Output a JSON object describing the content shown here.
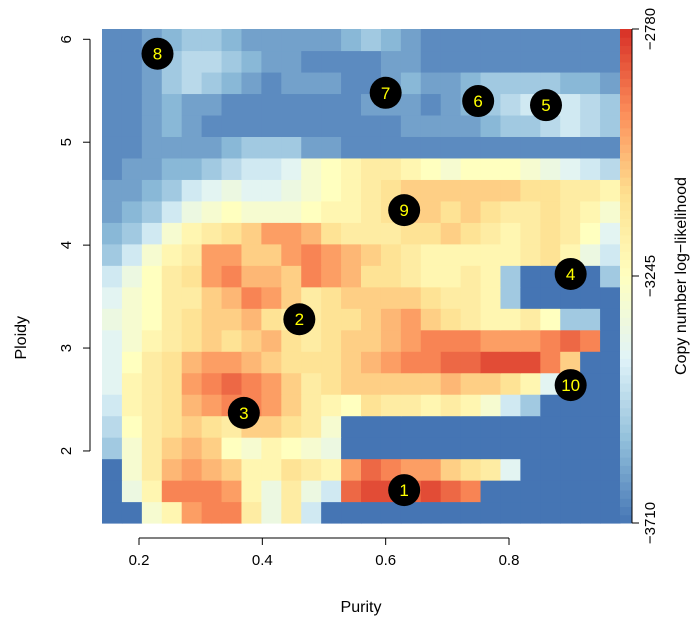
{
  "chart_data": {
    "type": "heatmap",
    "title": "",
    "xlabel": "Purity",
    "ylabel": "Ploidy",
    "xlim": [
      0.14,
      0.98
    ],
    "ylim": [
      1.3,
      6.1
    ],
    "x_ticks": [
      0.2,
      0.4,
      0.6,
      0.8
    ],
    "x_tick_labels": [
      "0.2",
      "0.4",
      "0.6",
      "0.8"
    ],
    "y_ticks": [
      2,
      3,
      4,
      5,
      6
    ],
    "y_tick_labels": [
      "2",
      "3",
      "4",
      "5",
      "6"
    ],
    "grid": false,
    "colorbar": {
      "label": "Copy number log−likelihood",
      "min": -3710,
      "max": -2780,
      "ticks": [
        -2780,
        -3245,
        -3710
      ],
      "tick_labels": [
        "−2780",
        "−3245",
        "−3710"
      ],
      "colors": [
        "#4575b4",
        "#91bfdb",
        "#e0f3f8",
        "#ffffbf",
        "#fee090",
        "#fc8d59",
        "#d73027"
      ]
    },
    "grid_x_edges": [
      0.14,
      0.98
    ],
    "grid_y_edges": [
      1.3,
      6.1
    ],
    "grid_cols": 26,
    "grid_rows": 23,
    "values_normalized": [
      [
        0.0,
        0.0,
        0.45,
        0.55,
        0.8,
        0.85,
        0.85,
        0.6,
        0.4,
        0.6,
        0.3,
        0.0,
        0.0,
        0.0,
        0.0,
        0.0,
        0.0,
        0.0,
        0.0,
        0.0,
        0.0,
        0.0,
        0.0,
        0.0,
        0.0,
        0.0
      ],
      [
        0.0,
        0.4,
        0.55,
        0.85,
        0.85,
        0.85,
        0.8,
        0.55,
        0.4,
        0.6,
        0.4,
        0.3,
        0.9,
        0.95,
        0.95,
        0.9,
        0.95,
        0.9,
        0.85,
        0.0,
        0.0,
        0.0,
        0.0,
        0.0,
        0.0,
        0.0
      ],
      [
        0.0,
        0.45,
        0.6,
        0.75,
        0.8,
        0.75,
        0.7,
        0.55,
        0.55,
        0.65,
        0.6,
        0.55,
        0.8,
        0.9,
        0.85,
        0.8,
        0.8,
        0.7,
        0.65,
        0.6,
        0.35,
        0.0,
        0.0,
        0.0,
        0.0,
        0.0
      ],
      [
        0.2,
        0.45,
        0.6,
        0.7,
        0.75,
        0.7,
        0.5,
        0.45,
        0.55,
        0.5,
        0.45,
        0.4,
        0.0,
        0.0,
        0.0,
        0.0,
        0.0,
        0.0,
        0.0,
        0.0,
        0.0,
        0.0,
        0.0,
        0.0,
        0.0,
        0.0
      ],
      [
        0.25,
        0.5,
        0.6,
        0.65,
        0.7,
        0.65,
        0.6,
        0.7,
        0.7,
        0.65,
        0.6,
        0.45,
        0.0,
        0.0,
        0.0,
        0.0,
        0.0,
        0.0,
        0.0,
        0.0,
        0.0,
        0.0,
        0.0,
        0.0,
        0.0,
        0.0
      ],
      [
        0.3,
        0.55,
        0.6,
        0.65,
        0.75,
        0.8,
        0.85,
        0.85,
        0.8,
        0.7,
        0.6,
        0.55,
        0.5,
        0.65,
        0.6,
        0.6,
        0.55,
        0.6,
        0.55,
        0.45,
        0.3,
        0.2,
        0.0,
        0.0,
        0.0,
        0.0
      ],
      [
        0.35,
        0.55,
        0.6,
        0.65,
        0.8,
        0.85,
        0.9,
        0.85,
        0.8,
        0.7,
        0.6,
        0.65,
        0.7,
        0.7,
        0.7,
        0.7,
        0.7,
        0.75,
        0.7,
        0.7,
        0.65,
        0.55,
        0.35,
        0.0,
        0.0,
        0.0
      ],
      [
        0.35,
        0.5,
        0.6,
        0.65,
        0.75,
        0.8,
        0.8,
        0.75,
        0.7,
        0.65,
        0.65,
        0.65,
        0.7,
        0.75,
        0.8,
        0.85,
        0.85,
        0.9,
        0.9,
        0.95,
        0.95,
        0.95,
        0.85,
        0.7,
        0.0,
        0.0
      ],
      [
        0.35,
        0.45,
        0.55,
        0.6,
        0.65,
        0.7,
        0.65,
        0.7,
        0.75,
        0.65,
        0.6,
        0.65,
        0.7,
        0.7,
        0.75,
        0.8,
        0.85,
        0.85,
        0.85,
        0.8,
        0.8,
        0.8,
        0.85,
        0.9,
        0.85,
        0.0
      ],
      [
        0.4,
        0.45,
        0.5,
        0.6,
        0.65,
        0.7,
        0.7,
        0.75,
        0.65,
        0.6,
        0.6,
        0.65,
        0.65,
        0.7,
        0.75,
        0.8,
        0.7,
        0.65,
        0.6,
        0.55,
        0.55,
        0.6,
        0.5,
        0.2,
        0.2,
        0.0
      ],
      [
        0.35,
        0.45,
        0.5,
        0.6,
        0.6,
        0.7,
        0.75,
        0.85,
        0.8,
        0.7,
        0.6,
        0.65,
        0.7,
        0.7,
        0.7,
        0.7,
        0.65,
        0.6,
        0.6,
        0.55,
        0.2,
        0.0,
        0.0,
        0.0,
        0.0,
        0.0
      ],
      [
        0.3,
        0.4,
        0.5,
        0.6,
        0.65,
        0.8,
        0.85,
        0.75,
        0.75,
        0.7,
        0.85,
        0.8,
        0.75,
        0.65,
        0.65,
        0.6,
        0.55,
        0.55,
        0.6,
        0.55,
        0.2,
        0.0,
        0.0,
        0.0,
        0.0,
        0.2
      ],
      [
        0.2,
        0.3,
        0.45,
        0.55,
        0.6,
        0.8,
        0.8,
        0.7,
        0.7,
        0.8,
        0.85,
        0.8,
        0.75,
        0.7,
        0.65,
        0.6,
        0.55,
        0.55,
        0.55,
        0.55,
        0.55,
        0.6,
        0.65,
        0.55,
        0.4,
        0.3
      ],
      [
        0.15,
        0.2,
        0.3,
        0.45,
        0.55,
        0.6,
        0.65,
        0.7,
        0.8,
        0.8,
        0.75,
        0.65,
        0.6,
        0.6,
        0.6,
        0.65,
        0.65,
        0.7,
        0.65,
        0.6,
        0.55,
        0.6,
        0.65,
        0.6,
        0.5,
        0.35
      ],
      [
        0.1,
        0.15,
        0.2,
        0.3,
        0.4,
        0.45,
        0.5,
        0.45,
        0.45,
        0.45,
        0.5,
        0.55,
        0.55,
        0.6,
        0.65,
        0.7,
        0.7,
        0.65,
        0.7,
        0.65,
        0.6,
        0.6,
        0.65,
        0.6,
        0.55,
        0.45
      ],
      [
        0.1,
        0.1,
        0.15,
        0.2,
        0.3,
        0.35,
        0.4,
        0.35,
        0.35,
        0.4,
        0.45,
        0.5,
        0.55,
        0.6,
        0.65,
        0.7,
        0.7,
        0.7,
        0.7,
        0.7,
        0.7,
        0.65,
        0.65,
        0.6,
        0.6,
        0.55
      ],
      [
        0.05,
        0.1,
        0.1,
        0.15,
        0.15,
        0.2,
        0.25,
        0.3,
        0.3,
        0.35,
        0.45,
        0.5,
        0.55,
        0.6,
        0.6,
        0.55,
        0.5,
        0.45,
        0.5,
        0.5,
        0.5,
        0.45,
        0.4,
        0.35,
        0.3,
        0.25
      ],
      [
        0.05,
        0.05,
        0.1,
        0.1,
        0.1,
        0.1,
        0.15,
        0.2,
        0.2,
        0.2,
        0.1,
        0.1,
        0.05,
        0.05,
        0.05,
        0.05,
        0.05,
        0.05,
        0.05,
        0.05,
        0.05,
        0.05,
        0.05,
        0.05,
        0.05,
        0.05
      ],
      [
        0.05,
        0.05,
        0.1,
        0.15,
        0.1,
        0.05,
        0.05,
        0.05,
        0.05,
        0.05,
        0.05,
        0.05,
        0.05,
        0.05,
        0.05,
        0.1,
        0.1,
        0.1,
        0.1,
        0.15,
        0.2,
        0.2,
        0.25,
        0.3,
        0.25,
        0.2
      ],
      [
        0.05,
        0.05,
        0.1,
        0.15,
        0.1,
        0.1,
        0.05,
        0.05,
        0.05,
        0.05,
        0.05,
        0.05,
        0.05,
        0.1,
        0.1,
        0.1,
        0.05,
        0.1,
        0.15,
        0.2,
        0.25,
        0.3,
        0.35,
        0.3,
        0.25,
        0.2
      ],
      [
        0.05,
        0.05,
        0.1,
        0.2,
        0.25,
        0.2,
        0.15,
        0.1,
        0.05,
        0.1,
        0.1,
        0.1,
        0.05,
        0.05,
        0.1,
        0.15,
        0.1,
        0.1,
        0.15,
        0.2,
        0.2,
        0.2,
        0.2,
        0.15,
        0.15,
        0.1
      ],
      [
        0.05,
        0.05,
        0.1,
        0.2,
        0.25,
        0.25,
        0.2,
        0.15,
        0.1,
        0.1,
        0.05,
        0.05,
        0.05,
        0.05,
        0.1,
        0.1,
        0.05,
        0.05,
        0.05,
        0.05,
        0.05,
        0.05,
        0.05,
        0.05,
        0.05,
        0.05
      ],
      [
        0.05,
        0.05,
        0.1,
        0.15,
        0.2,
        0.2,
        0.15,
        0.1,
        0.1,
        0.1,
        0.1,
        0.1,
        0.15,
        0.2,
        0.15,
        0.1,
        0.05,
        0.05,
        0.05,
        0.05,
        0.05,
        0.05,
        0.05,
        0.05,
        0.05,
        0.05
      ]
    ],
    "markers": [
      {
        "label": "1",
        "x": 0.63,
        "y": 1.62
      },
      {
        "label": "2",
        "x": 0.46,
        "y": 3.28
      },
      {
        "label": "3",
        "x": 0.37,
        "y": 2.37
      },
      {
        "label": "4",
        "x": 0.9,
        "y": 3.72
      },
      {
        "label": "5",
        "x": 0.86,
        "y": 5.36
      },
      {
        "label": "6",
        "x": 0.75,
        "y": 5.4
      },
      {
        "label": "7",
        "x": 0.6,
        "y": 5.48
      },
      {
        "label": "8",
        "x": 0.23,
        "y": 5.86
      },
      {
        "label": "9",
        "x": 0.63,
        "y": 4.34
      },
      {
        "label": "10",
        "x": 0.9,
        "y": 2.64
      }
    ],
    "marker_fill": "#000000",
    "marker_text_color": "#ffff00"
  }
}
